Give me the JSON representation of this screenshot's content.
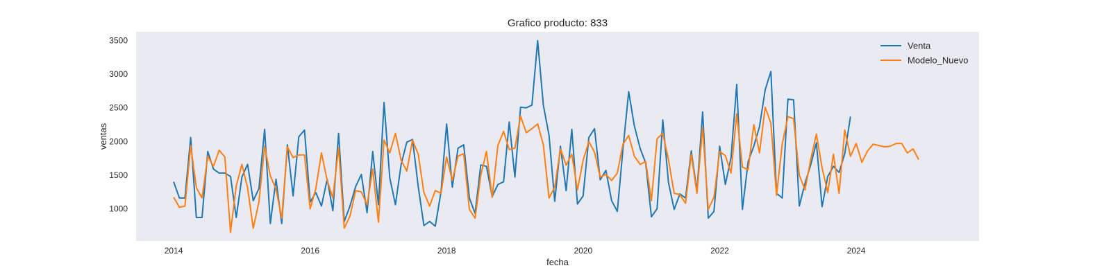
{
  "chart_data": {
    "type": "line",
    "title": "Grafico producto: 833",
    "xlabel": "fecha",
    "ylabel": "ventas",
    "x_unit": "year",
    "xlim": [
      2013.45,
      2025.8
    ],
    "ylim": [
      520,
      3630
    ],
    "xticks": [
      2014,
      2016,
      2018,
      2020,
      2022,
      2024
    ],
    "yticks": [
      1000,
      1500,
      2000,
      2500,
      3000,
      3500
    ],
    "grid": true,
    "legend_position": "top-right",
    "background_color": "#eaeaf2",
    "series": [
      {
        "name": "Venta",
        "color": "#1f77b4",
        "x_start": 2014.0,
        "x_step": 0.08333,
        "values": [
          1400,
          1160,
          1160,
          2060,
          870,
          870,
          1850,
          1590,
          1530,
          1530,
          1480,
          870,
          1470,
          1660,
          1120,
          1300,
          2180,
          780,
          1440,
          780,
          1950,
          1190,
          2070,
          2170,
          1100,
          1240,
          1040,
          1440,
          970,
          2120,
          810,
          1040,
          1330,
          1510,
          940,
          1850,
          1060,
          2580,
          1460,
          1060,
          1660,
          1990,
          2030,
          1330,
          750,
          810,
          740,
          1250,
          2260,
          1320,
          1900,
          1950,
          1160,
          930,
          1650,
          1630,
          1180,
          1360,
          1400,
          2290,
          1470,
          2510,
          2500,
          2540,
          3500,
          2540,
          2090,
          1110,
          1930,
          1270,
          2180,
          1070,
          1190,
          2060,
          2190,
          1430,
          1570,
          1120,
          960,
          1890,
          2740,
          2230,
          1900,
          1680,
          880,
          1000,
          2320,
          1390,
          990,
          1220,
          1160,
          1860,
          1260,
          2440,
          860,
          960,
          1930,
          1360,
          1760,
          2850,
          990,
          1700,
          1930,
          2220,
          2770,
          3040,
          1230,
          1160,
          2630,
          2620,
          1040,
          1380,
          1650,
          1980,
          1030,
          1480,
          1630,
          1540,
          1820,
          2370
        ],
        "fit_note": null
      },
      {
        "name": "Modelo_Nuevo",
        "color": "#ff7f0e",
        "x_start": 2014.0,
        "x_step": 0.08333,
        "values": [
          1170,
          1020,
          1040,
          1940,
          1310,
          1160,
          1780,
          1630,
          1870,
          1770,
          650,
          1340,
          1660,
          1310,
          710,
          1100,
          1930,
          1490,
          1290,
          860,
          1920,
          1760,
          1800,
          1800,
          1000,
          1300,
          1830,
          1420,
          1160,
          1910,
          710,
          890,
          1270,
          1250,
          1060,
          1590,
          800,
          2020,
          1830,
          2120,
          1720,
          1560,
          2020,
          1810,
          1240,
          1040,
          1270,
          1230,
          1770,
          1420,
          1780,
          1820,
          990,
          860,
          1500,
          1850,
          1170,
          1940,
          2150,
          1880,
          1900,
          2380,
          2130,
          2190,
          2260,
          1950,
          1160,
          1320,
          1890,
          1650,
          1810,
          1280,
          1720,
          2000,
          1840,
          1470,
          1510,
          1420,
          1530,
          1960,
          2090,
          1780,
          1660,
          1700,
          1120,
          2040,
          2120,
          1730,
          1230,
          1210,
          1080,
          1810,
          1230,
          2210,
          990,
          1170,
          1850,
          1790,
          1530,
          2410,
          1620,
          1580,
          2250,
          1830,
          2510,
          2270,
          1200,
          1960,
          2370,
          2340,
          1500,
          1280,
          1730,
          2110,
          1610,
          1240,
          1810,
          1230,
          2170,
          1780,
          1970,
          1690,
          1860,
          1960,
          1940,
          1920,
          1930,
          1970,
          1970,
          1830,
          1890,
          1730
        ]
      }
    ]
  }
}
